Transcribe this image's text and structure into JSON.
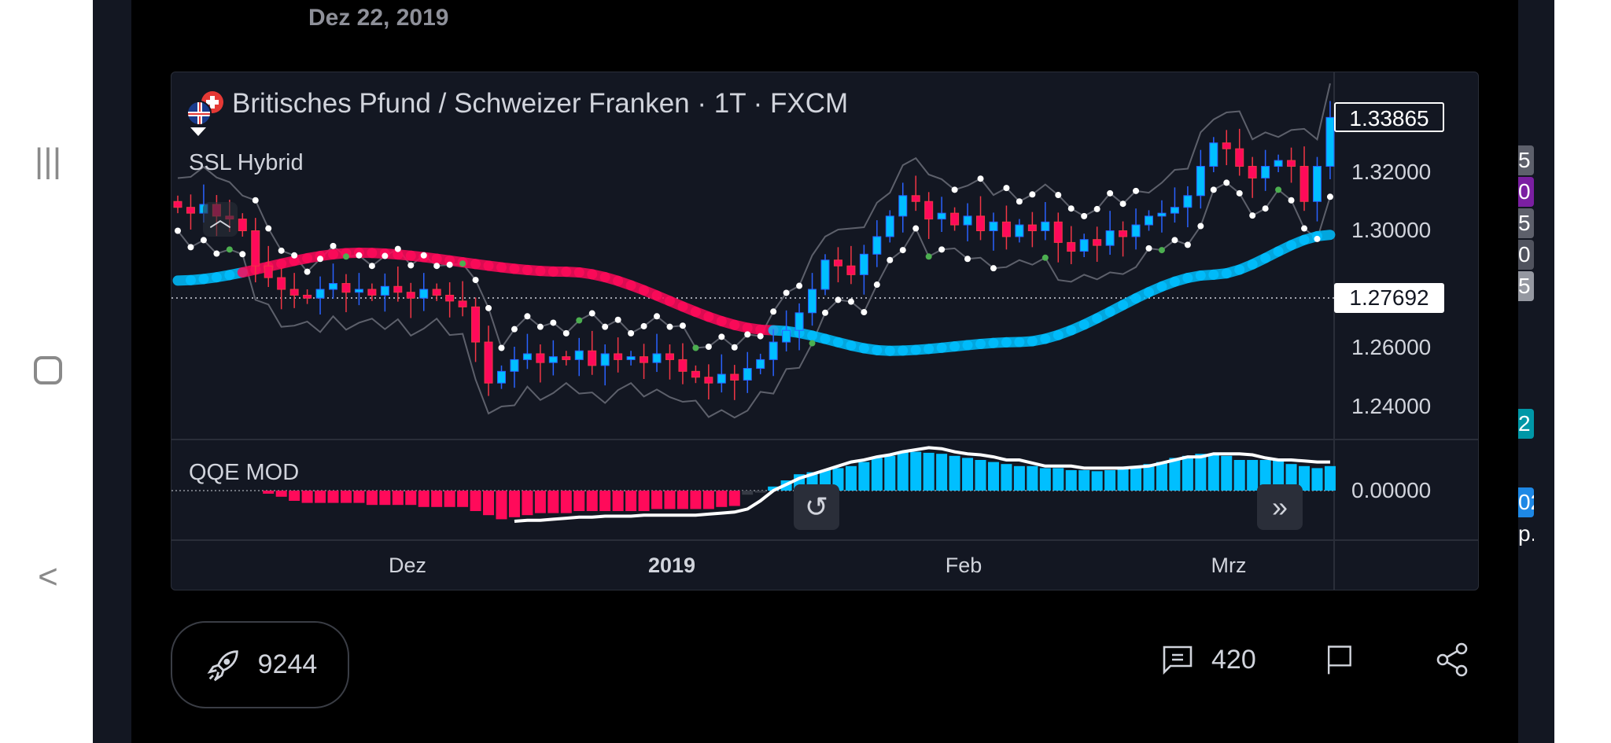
{
  "header": {
    "updated_date": "Dez 22, 2019"
  },
  "chart": {
    "title": "Britisches Pfund / Schweizer Franken · 1T · FXCM",
    "indicator_main": "SSL Hybrid",
    "indicator_sub": "QQE MOD",
    "price_labels": [
      "1.32000",
      "1.30000",
      "1.26000",
      "1.24000"
    ],
    "last_price": "1.33865",
    "crosshair_price": "1.27692",
    "qqe_zero_label": "0.00000",
    "time_labels": [
      "Dez",
      "2019",
      "Feb",
      "Mrz"
    ]
  },
  "chart_data": {
    "type": "candlestick",
    "title": "Britisches Pfund / Schweizer Franken · 1T · FXCM",
    "ylim": [
      1.228,
      1.345
    ],
    "y_ticks": [
      1.24,
      1.26,
      1.3,
      1.32
    ],
    "closes": [
      1.308,
      1.306,
      1.309,
      1.305,
      1.304,
      1.3,
      1.288,
      1.284,
      1.28,
      1.278,
      1.277,
      1.28,
      1.282,
      1.279,
      1.28,
      1.278,
      1.281,
      1.279,
      1.277,
      1.28,
      1.278,
      1.276,
      1.274,
      1.262,
      1.248,
      1.252,
      1.256,
      1.258,
      1.255,
      1.257,
      1.256,
      1.259,
      1.254,
      1.258,
      1.256,
      1.257,
      1.255,
      1.258,
      1.256,
      1.252,
      1.25,
      1.248,
      1.251,
      1.249,
      1.253,
      1.256,
      1.262,
      1.266,
      1.272,
      1.28,
      1.29,
      1.288,
      1.285,
      1.292,
      1.298,
      1.305,
      1.312,
      1.31,
      1.304,
      1.306,
      1.302,
      1.305,
      1.3,
      1.303,
      1.298,
      1.302,
      1.3,
      1.303,
      1.296,
      1.293,
      1.297,
      1.295,
      1.3,
      1.298,
      1.302,
      1.305,
      1.306,
      1.308,
      1.312,
      1.322,
      1.33,
      1.328,
      1.322,
      1.318,
      1.322,
      1.324,
      1.322,
      1.31,
      1.322,
      1.3387
    ],
    "baseline_points": [
      [
        0,
        1.283
      ],
      [
        14,
        1.2925
      ],
      [
        30,
        1.286
      ],
      [
        46,
        1.266
      ],
      [
        55,
        1.259
      ],
      [
        65,
        1.262
      ],
      [
        80,
        1.285
      ],
      [
        89,
        1.2986
      ]
    ],
    "qqe_histogram": [
      0,
      0,
      0,
      0,
      0,
      0,
      0,
      -3,
      -6,
      -10,
      -12,
      -12,
      -12,
      -12,
      -12,
      -14,
      -14,
      -14,
      -14,
      -16,
      -16,
      -16,
      -16,
      -20,
      -24,
      -28,
      -26,
      -24,
      -22,
      -22,
      -22,
      -20,
      -20,
      -20,
      -20,
      -20,
      -20,
      -18,
      -18,
      -18,
      -18,
      -18,
      -16,
      -15,
      -4,
      -2,
      4,
      10,
      16,
      18,
      20,
      22,
      24,
      28,
      32,
      34,
      38,
      38,
      37,
      36,
      34,
      32,
      30,
      28,
      26,
      24,
      24,
      22,
      22,
      20,
      20,
      19,
      20,
      22,
      24,
      26,
      28,
      32,
      34,
      36,
      36,
      34,
      30,
      30,
      30,
      30,
      26,
      24,
      22,
      24
    ],
    "qqe_line": [
      null,
      null,
      null,
      null,
      null,
      null,
      null,
      null,
      null,
      null,
      null,
      null,
      null,
      null,
      null,
      null,
      null,
      null,
      null,
      null,
      null,
      null,
      null,
      null,
      null,
      null,
      -30,
      -29,
      -29,
      -28,
      -27,
      -26,
      -26,
      -25,
      -25,
      -25,
      -24,
      -24,
      -24,
      -24,
      -24,
      -23,
      -22,
      -21,
      -18,
      -10,
      0,
      6,
      12,
      16,
      20,
      24,
      28,
      30,
      33,
      35,
      38,
      40,
      42,
      41,
      38,
      36,
      35,
      33,
      30,
      30,
      27,
      24,
      24,
      24,
      22,
      22,
      22,
      22,
      23,
      24,
      27,
      30,
      33,
      33,
      36,
      36,
      36,
      35,
      32,
      30,
      30,
      29,
      28,
      28
    ],
    "colors": {
      "bull": "#00bfff",
      "bear": "#ff0a5a",
      "neutral": "#787b86",
      "line": "#ffffff"
    }
  },
  "actions": {
    "boost_count": "9244",
    "comment_count": "420"
  },
  "side_fragments": [
    "5",
    "0",
    "5",
    "0",
    "5",
    "2",
    "02",
    "p."
  ]
}
